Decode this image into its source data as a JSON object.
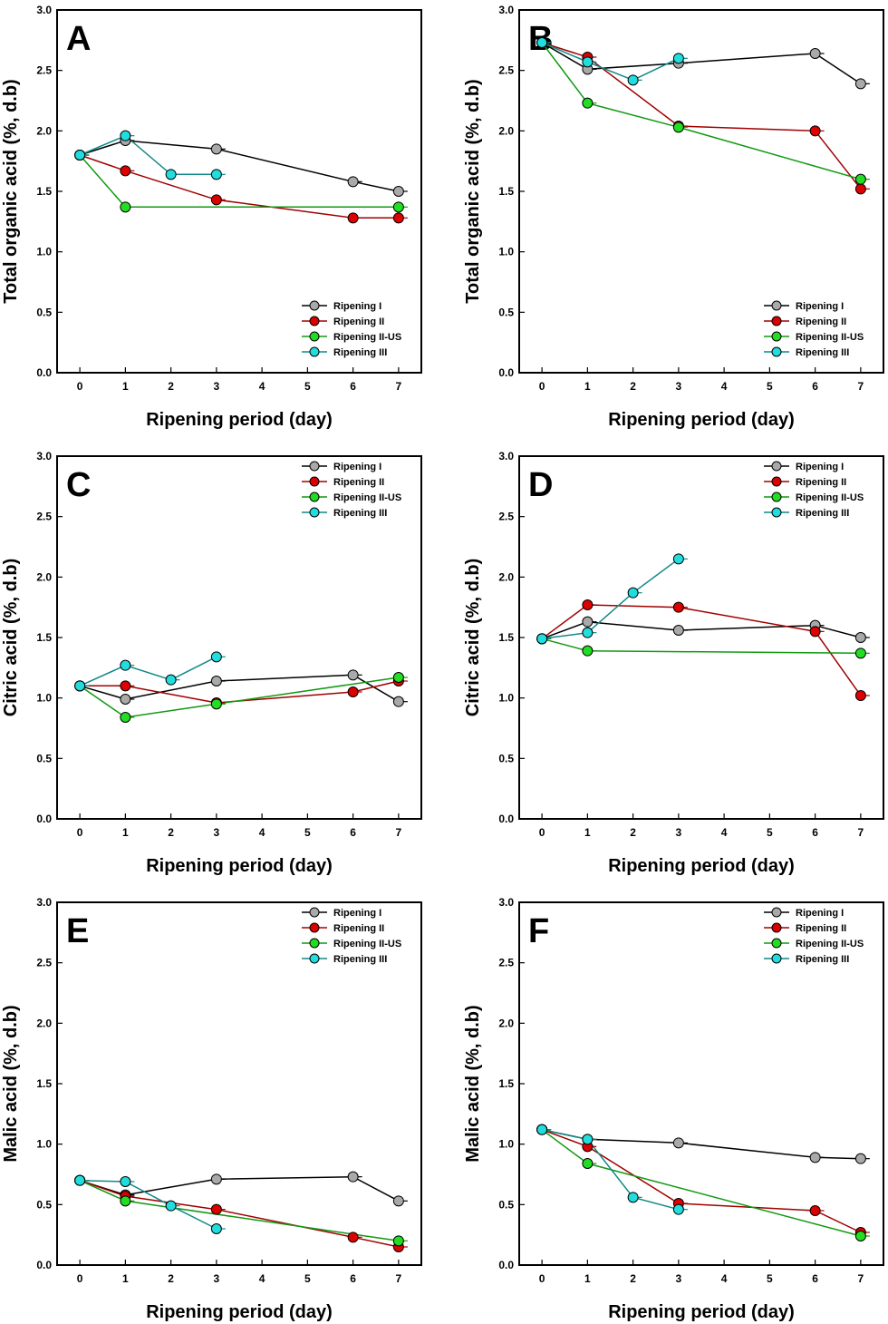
{
  "series_styles": [
    {
      "name": "Ripening I",
      "color": "#a9a9a9",
      "line": "#000000"
    },
    {
      "name": "Ripening II",
      "color": "#dd0000",
      "line": "#a00000"
    },
    {
      "name": "Ripening II-US",
      "color": "#22dd22",
      "line": "#119911"
    },
    {
      "name": "Ripening III",
      "color": "#22dddd",
      "line": "#118888"
    }
  ],
  "chart_data": [
    {
      "type": "line",
      "panel": "A",
      "title": "",
      "xlabel": "Ripening period (day)",
      "ylabel": "Total organic acid (%, d.b)",
      "xlim": [
        -0.5,
        7.5
      ],
      "ylim": [
        0,
        3.0
      ],
      "xticks": [
        0,
        1,
        2,
        3,
        4,
        5,
        6,
        7
      ],
      "yticks": [
        "0.0",
        "0.5",
        "1.0",
        "1.5",
        "2.0",
        "2.5",
        "3.0"
      ],
      "legend": "bottom-right",
      "series": [
        {
          "name": "Ripening I",
          "x": [
            0,
            1,
            3,
            6,
            7
          ],
          "values": [
            1.8,
            1.92,
            1.85,
            1.58,
            1.5
          ]
        },
        {
          "name": "Ripening II",
          "x": [
            0,
            1,
            3,
            6,
            7
          ],
          "values": [
            1.8,
            1.67,
            1.43,
            1.28,
            1.28
          ]
        },
        {
          "name": "Ripening II-US",
          "x": [
            0,
            1,
            7
          ],
          "values": [
            1.8,
            1.37,
            1.37
          ]
        },
        {
          "name": "Ripening III",
          "x": [
            0,
            1,
            2,
            3
          ],
          "values": [
            1.8,
            1.96,
            1.64,
            1.64
          ]
        }
      ]
    },
    {
      "type": "line",
      "panel": "B",
      "title": "",
      "xlabel": "Ripening period (day)",
      "ylabel": "Total organic acid (%, d.b)",
      "xlim": [
        -0.5,
        7.5
      ],
      "ylim": [
        0,
        3.0
      ],
      "xticks": [
        0,
        1,
        2,
        3,
        4,
        5,
        6,
        7
      ],
      "yticks": [
        "0.0",
        "0.5",
        "1.0",
        "1.5",
        "2.0",
        "2.5",
        "3.0"
      ],
      "legend": "bottom-right",
      "series": [
        {
          "name": "Ripening I",
          "x": [
            0,
            1,
            3,
            6,
            7
          ],
          "values": [
            2.73,
            2.51,
            2.56,
            2.64,
            2.39
          ]
        },
        {
          "name": "Ripening II",
          "x": [
            0,
            1,
            3,
            6,
            7
          ],
          "values": [
            2.73,
            2.61,
            2.04,
            2.0,
            1.52
          ]
        },
        {
          "name": "Ripening II-US",
          "x": [
            0,
            1,
            3,
            7
          ],
          "values": [
            2.73,
            2.23,
            2.03,
            1.6
          ]
        },
        {
          "name": "Ripening III",
          "x": [
            0,
            1,
            2,
            3
          ],
          "values": [
            2.73,
            2.57,
            2.42,
            2.6
          ]
        }
      ]
    },
    {
      "type": "line",
      "panel": "C",
      "title": "",
      "xlabel": "Ripening period (day)",
      "ylabel": "Citric acid (%, d.b)",
      "xlim": [
        -0.5,
        7.5
      ],
      "ylim": [
        0,
        3.0
      ],
      "xticks": [
        0,
        1,
        2,
        3,
        4,
        5,
        6,
        7
      ],
      "yticks": [
        "0.0",
        "0.5",
        "1.0",
        "1.5",
        "2.0",
        "2.5",
        "3.0"
      ],
      "legend": "top-right",
      "series": [
        {
          "name": "Ripening I",
          "x": [
            0,
            1,
            3,
            6,
            7
          ],
          "values": [
            1.1,
            0.99,
            1.14,
            1.19,
            0.97
          ]
        },
        {
          "name": "Ripening II",
          "x": [
            0,
            1,
            3,
            6,
            7
          ],
          "values": [
            1.1,
            1.1,
            0.96,
            1.05,
            1.14
          ]
        },
        {
          "name": "Ripening II-US",
          "x": [
            0,
            1,
            3,
            7
          ],
          "values": [
            1.1,
            0.84,
            0.95,
            1.17
          ]
        },
        {
          "name": "Ripening III",
          "x": [
            0,
            1,
            2,
            3
          ],
          "values": [
            1.1,
            1.27,
            1.15,
            1.34
          ]
        }
      ]
    },
    {
      "type": "line",
      "panel": "D",
      "title": "",
      "xlabel": "Ripening period (day)",
      "ylabel": "Citric acid (%, d.b)",
      "xlim": [
        -0.5,
        7.5
      ],
      "ylim": [
        0,
        3.0
      ],
      "xticks": [
        0,
        1,
        2,
        3,
        4,
        5,
        6,
        7
      ],
      "yticks": [
        "0.0",
        "0.5",
        "1.0",
        "1.5",
        "2.0",
        "2.5",
        "3.0"
      ],
      "legend": "top-right",
      "series": [
        {
          "name": "Ripening I",
          "x": [
            0,
            1,
            3,
            6,
            7
          ],
          "values": [
            1.49,
            1.63,
            1.56,
            1.6,
            1.5
          ]
        },
        {
          "name": "Ripening II",
          "x": [
            0,
            1,
            3,
            6,
            7
          ],
          "values": [
            1.49,
            1.77,
            1.75,
            1.55,
            1.02
          ]
        },
        {
          "name": "Ripening II-US",
          "x": [
            0,
            1,
            7
          ],
          "values": [
            1.49,
            1.39,
            1.37
          ]
        },
        {
          "name": "Ripening III",
          "x": [
            0,
            1,
            2,
            3
          ],
          "values": [
            1.49,
            1.54,
            1.87,
            2.15
          ]
        }
      ]
    },
    {
      "type": "line",
      "panel": "E",
      "title": "",
      "xlabel": "Ripening period (day)",
      "ylabel": "Malic acid (%, d.b)",
      "xlim": [
        -0.5,
        7.5
      ],
      "ylim": [
        0,
        3.0
      ],
      "xticks": [
        0,
        1,
        2,
        3,
        4,
        5,
        6,
        7
      ],
      "yticks": [
        "0.0",
        "0.5",
        "1.0",
        "1.5",
        "2.0",
        "2.5",
        "3.0"
      ],
      "legend": "top-right",
      "series": [
        {
          "name": "Ripening I",
          "x": [
            0,
            1,
            3,
            6,
            7
          ],
          "values": [
            0.7,
            0.58,
            0.71,
            0.73,
            0.53
          ]
        },
        {
          "name": "Ripening II",
          "x": [
            0,
            1,
            3,
            6,
            7
          ],
          "values": [
            0.7,
            0.57,
            0.46,
            0.23,
            0.15
          ]
        },
        {
          "name": "Ripening II-US",
          "x": [
            0,
            1,
            7
          ],
          "values": [
            0.7,
            0.53,
            0.2
          ]
        },
        {
          "name": "Ripening III",
          "x": [
            0,
            1,
            2,
            3
          ],
          "values": [
            0.7,
            0.69,
            0.49,
            0.3
          ]
        }
      ]
    },
    {
      "type": "line",
      "panel": "F",
      "title": "",
      "xlabel": "Ripening period (day)",
      "ylabel": "Malic acid (%, d.b)",
      "xlim": [
        -0.5,
        7.5
      ],
      "ylim": [
        0,
        3.0
      ],
      "xticks": [
        0,
        1,
        2,
        3,
        4,
        5,
        6,
        7
      ],
      "yticks": [
        "0.0",
        "0.5",
        "1.0",
        "1.5",
        "2.0",
        "2.5",
        "3.0"
      ],
      "legend": "top-right",
      "series": [
        {
          "name": "Ripening I",
          "x": [
            0,
            1,
            3,
            6,
            7
          ],
          "values": [
            1.12,
            1.04,
            1.01,
            0.89,
            0.88
          ]
        },
        {
          "name": "Ripening II",
          "x": [
            0,
            1,
            3,
            6,
            7
          ],
          "values": [
            1.12,
            0.98,
            0.51,
            0.45,
            0.27
          ]
        },
        {
          "name": "Ripening II-US",
          "x": [
            0,
            1,
            7
          ],
          "values": [
            1.12,
            0.84,
            0.24
          ]
        },
        {
          "name": "Ripening III",
          "x": [
            0,
            1,
            2,
            3
          ],
          "values": [
            1.12,
            1.04,
            0.56,
            0.46
          ]
        }
      ]
    }
  ]
}
